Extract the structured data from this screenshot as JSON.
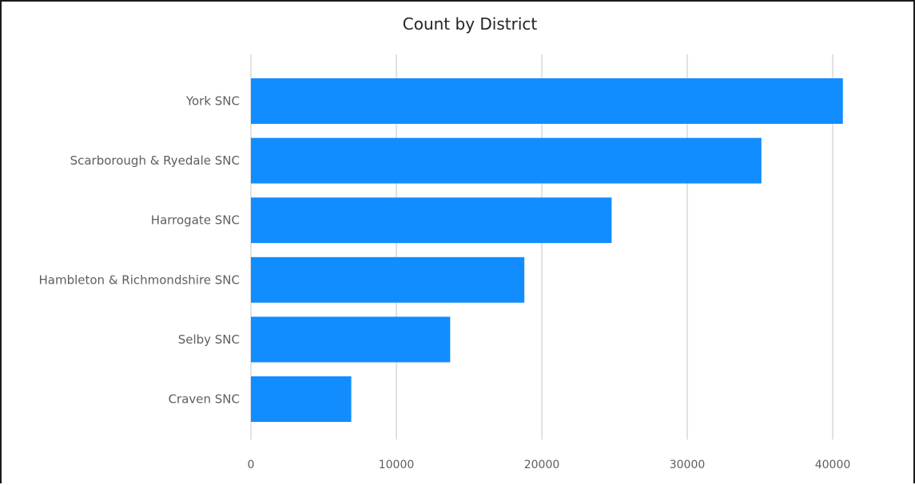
{
  "chart_data": {
    "type": "bar",
    "orientation": "horizontal",
    "title": "Count by District",
    "categories": [
      "York SNC",
      "Scarborough & Ryedale SNC",
      "Harrogate SNC",
      "Hambleton & Richmondshire SNC",
      "Selby SNC",
      "Craven SNC"
    ],
    "values": [
      40700,
      35100,
      24800,
      18800,
      13700,
      6900
    ],
    "xlim": [
      0,
      44000
    ],
    "xticks": [
      0,
      10000,
      20000,
      30000,
      40000
    ],
    "grid": true,
    "bar_color": "#118DFF"
  }
}
